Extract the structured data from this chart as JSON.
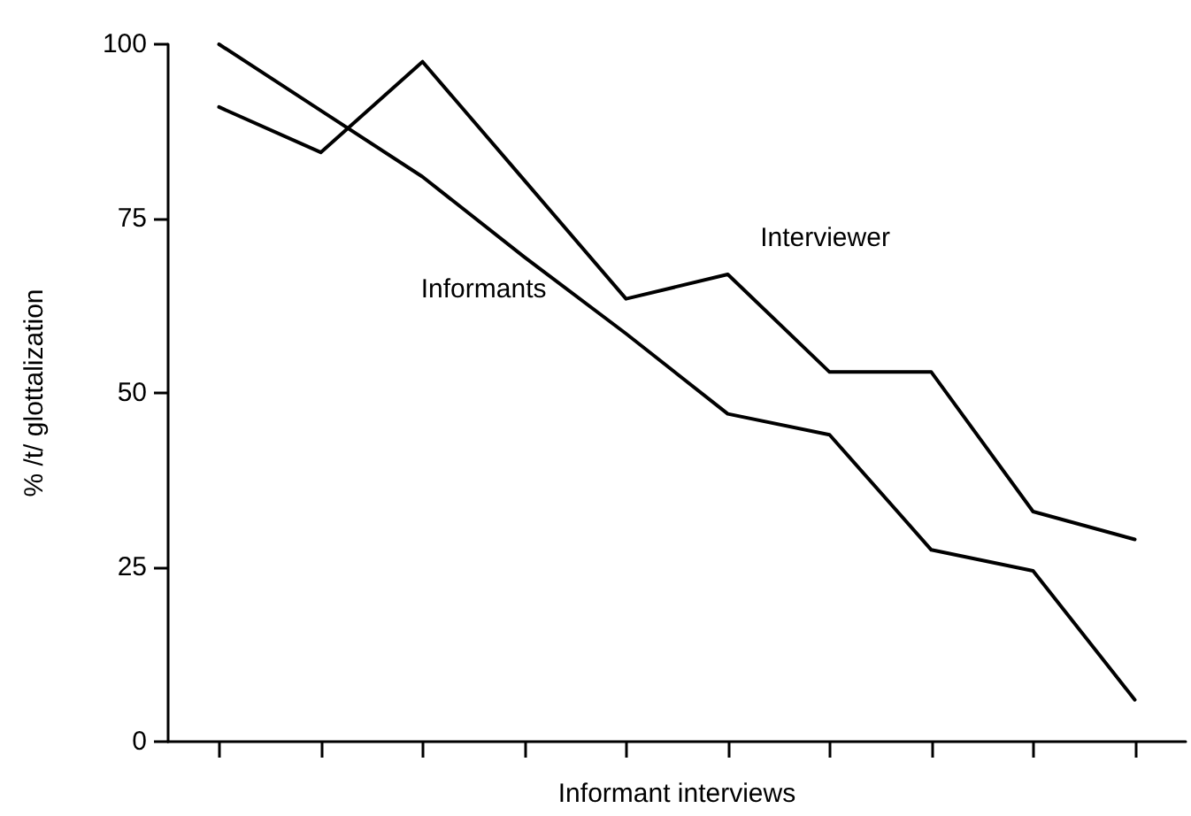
{
  "chart_data": {
    "type": "line",
    "xlabel": "Informant interviews",
    "ylabel": "% /t/ glottalization",
    "categories": [
      null,
      null,
      null,
      null,
      null,
      null,
      null,
      null,
      null,
      null
    ],
    "ylim": [
      0,
      100
    ],
    "yticks": [
      0,
      25,
      50,
      75,
      100
    ],
    "grid": false,
    "legend": false,
    "marker": "none",
    "line_style": "solid",
    "series": [
      {
        "name": "Interviewer",
        "color": "#000000",
        "values": [
          91,
          84.5,
          97.5,
          80.5,
          63.5,
          67,
          53,
          53,
          33,
          29
        ]
      },
      {
        "name": "Informants",
        "color": "#000000",
        "values": [
          100,
          90.5,
          81,
          69.5,
          58.5,
          47,
          44,
          27.5,
          24.5,
          6
        ]
      }
    ]
  }
}
